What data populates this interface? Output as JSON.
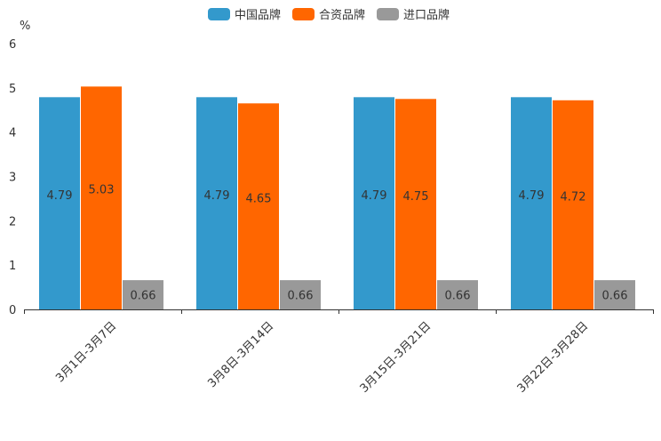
{
  "chart_data": {
    "type": "bar",
    "ylabel": "%",
    "ylim": [
      0,
      6
    ],
    "yticks": [
      "0",
      "1",
      "2",
      "3",
      "4",
      "5",
      "6"
    ],
    "categories": [
      "3月1日-3月7日",
      "3月8日-3月14日",
      "3月15日-3月21日",
      "3月22日-3月28日"
    ],
    "series": [
      {
        "name": "中国品牌",
        "color": "#3399cc",
        "values": [
          4.79,
          4.79,
          4.79,
          4.79
        ],
        "labels": [
          "4.79",
          "4.79",
          "4.79",
          "4.79"
        ]
      },
      {
        "name": "合资品牌",
        "color": "#ff6600",
        "values": [
          5.03,
          4.65,
          4.75,
          4.72
        ],
        "labels": [
          "5.03",
          "4.65",
          "4.75",
          "4.72"
        ]
      },
      {
        "name": "进口品牌",
        "color": "#999999",
        "values": [
          0.66,
          0.66,
          0.66,
          0.66
        ],
        "labels": [
          "0.66",
          "0.66",
          "0.66",
          "0.66"
        ]
      }
    ],
    "legend_position": "top-center",
    "grid": false
  }
}
